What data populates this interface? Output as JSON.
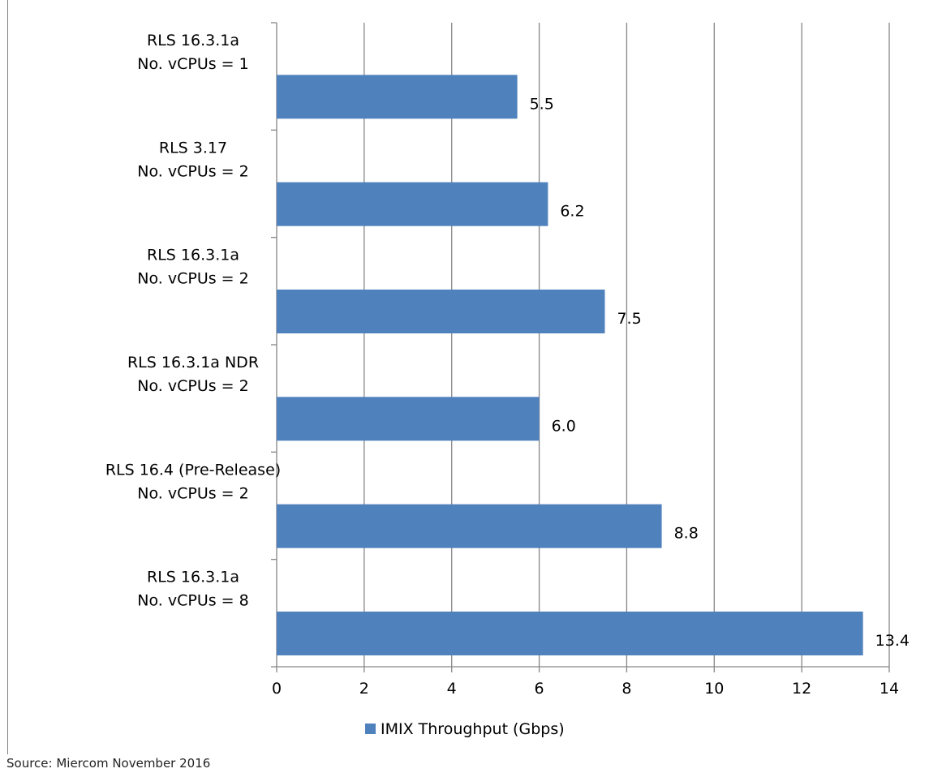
{
  "chart_data": {
    "type": "bar",
    "orientation": "horizontal",
    "categories": [
      [
        "RLS 16.3.1a",
        "No. vCPUs = 1"
      ],
      [
        "RLS 3.17",
        "No. vCPUs = 2"
      ],
      [
        "RLS 16.3.1a",
        "No. vCPUs = 2"
      ],
      [
        "RLS 16.3.1a NDR",
        "No. vCPUs = 2"
      ],
      [
        "RLS 16.4 (Pre-Release)",
        "No. vCPUs = 2"
      ],
      [
        "RLS 16.3.1a",
        "No. vCPUs = 8"
      ]
    ],
    "series": [
      {
        "name": "IMIX Throughput (Gbps)",
        "values": [
          5.5,
          6.2,
          7.5,
          6.0,
          8.8,
          13.4
        ],
        "data_labels": [
          "5.5",
          "6.2",
          "7.5",
          "6.0",
          "8.8",
          "13.4"
        ],
        "color": "#4f81bd"
      }
    ],
    "xticks": [
      "0",
      "2",
      "4",
      "6",
      "8",
      "10",
      "12",
      "14"
    ],
    "xlim": [
      0,
      14
    ],
    "grid": true,
    "gridline_color": "#868686",
    "legend_position": "bottom"
  },
  "footer": {
    "source": "Source: Miercom November 2016"
  }
}
